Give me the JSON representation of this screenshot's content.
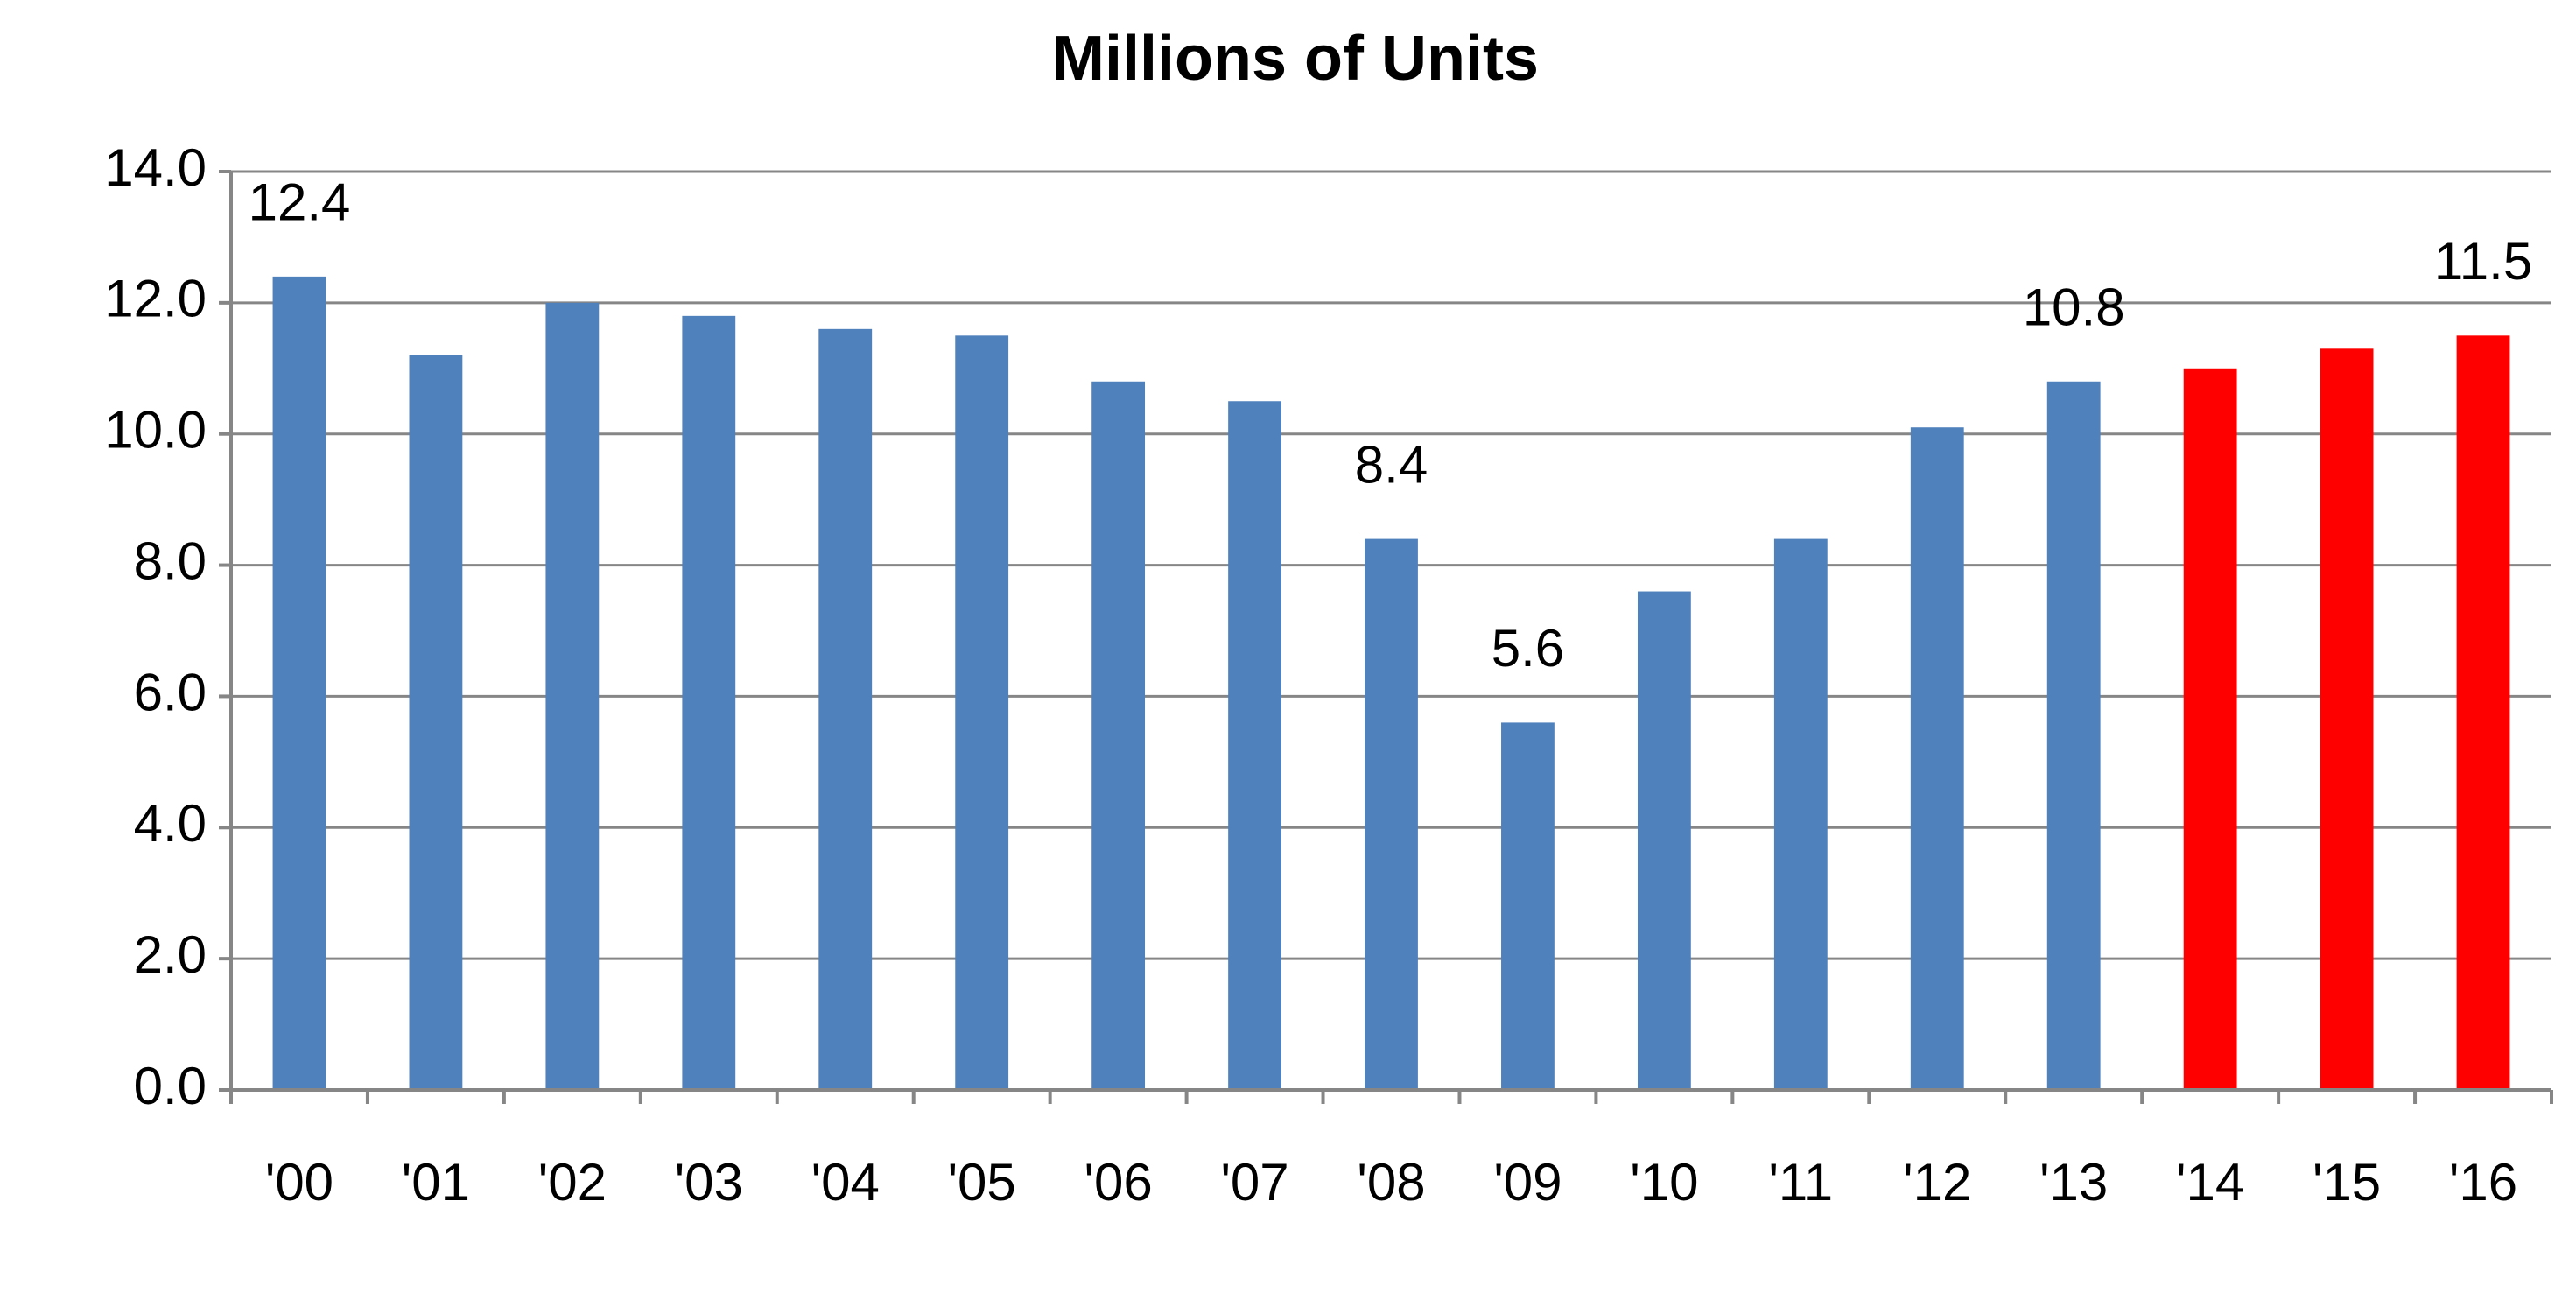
{
  "chart_data": {
    "type": "bar",
    "title": "Millions of Units",
    "categories": [
      "'00",
      "'01",
      "'02",
      "'03",
      "'04",
      "'05",
      "'06",
      "'07",
      "'08",
      "'09",
      "'10",
      "'11",
      "'12",
      "'13",
      "'14",
      "'15",
      "'16"
    ],
    "values": [
      12.4,
      11.2,
      12.0,
      11.8,
      11.6,
      11.5,
      10.8,
      10.5,
      8.4,
      5.6,
      7.6,
      8.4,
      10.1,
      10.8,
      11.0,
      11.3,
      11.5
    ],
    "value_labels": [
      "12.4",
      null,
      null,
      null,
      null,
      null,
      null,
      null,
      "8.4",
      "5.6",
      null,
      null,
      null,
      "10.8",
      null,
      null,
      "11.5"
    ],
    "colors": [
      "#4f81bd",
      "#4f81bd",
      "#4f81bd",
      "#4f81bd",
      "#4f81bd",
      "#4f81bd",
      "#4f81bd",
      "#4f81bd",
      "#4f81bd",
      "#4f81bd",
      "#4f81bd",
      "#4f81bd",
      "#4f81bd",
      "#4f81bd",
      "#ff0000",
      "#ff0000",
      "#ff0000"
    ],
    "ylim": [
      0,
      14
    ],
    "yticks": [
      {
        "value": 0,
        "label": "0.0"
      },
      {
        "value": 2,
        "label": "2.0"
      },
      {
        "value": 4,
        "label": "4.0"
      },
      {
        "value": 6,
        "label": "6.0"
      },
      {
        "value": 8,
        "label": "8.0"
      },
      {
        "value": 10,
        "label": "10.0"
      },
      {
        "value": 12,
        "label": "12.0"
      },
      {
        "value": 14,
        "label": "14.0"
      }
    ],
    "grid": true
  }
}
